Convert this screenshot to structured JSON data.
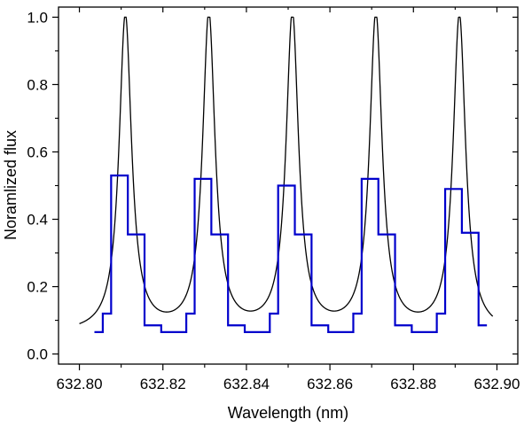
{
  "chart_data": {
    "type": "line",
    "title": "",
    "xlabel": "Wavelength (nm)",
    "ylabel": "Noramlized flux",
    "xlim": [
      632.795,
      632.905
    ],
    "ylim": [
      -0.03,
      1.03
    ],
    "x_ticks": [
      "632.80",
      "632.82",
      "632.84",
      "632.86",
      "632.88",
      "632.90"
    ],
    "y_ticks": [
      "0.0",
      "0.2",
      "0.4",
      "0.6",
      "0.8",
      "1.0"
    ],
    "x_tick_values": [
      632.8,
      632.82,
      632.84,
      632.86,
      632.88,
      632.9
    ],
    "y_tick_values": [
      0.0,
      0.2,
      0.4,
      0.6,
      0.8,
      1.0
    ],
    "grid": false,
    "legend": "none",
    "series": [
      {
        "style": "smooth-line",
        "color": "#000000",
        "peaks_x": [
          632.811,
          632.831,
          632.851,
          632.871,
          632.891
        ],
        "peak_value": 1.0,
        "baseline": 0.06,
        "x_range": [
          632.8,
          632.899
        ]
      },
      {
        "style": "step",
        "color": "#0000cc",
        "x": [
          632.8036,
          632.8056,
          632.8076,
          632.8116,
          632.8156,
          632.8196,
          632.8236,
          632.8256,
          632.8276,
          632.8316,
          632.8356,
          632.8396,
          632.8436,
          632.8456,
          632.8476,
          632.8516,
          632.8556,
          632.8596,
          632.8636,
          632.8656,
          632.8676,
          632.8716,
          632.8756,
          632.8796,
          632.8836,
          632.8856,
          632.8876,
          632.8916,
          632.8956
        ],
        "y": [
          0.065,
          0.12,
          0.53,
          0.355,
          0.085,
          0.065,
          0.065,
          0.12,
          0.52,
          0.355,
          0.085,
          0.065,
          0.065,
          0.12,
          0.5,
          0.355,
          0.085,
          0.065,
          0.065,
          0.12,
          0.52,
          0.355,
          0.085,
          0.065,
          0.065,
          0.12,
          0.49,
          0.36,
          0.085
        ]
      }
    ]
  }
}
